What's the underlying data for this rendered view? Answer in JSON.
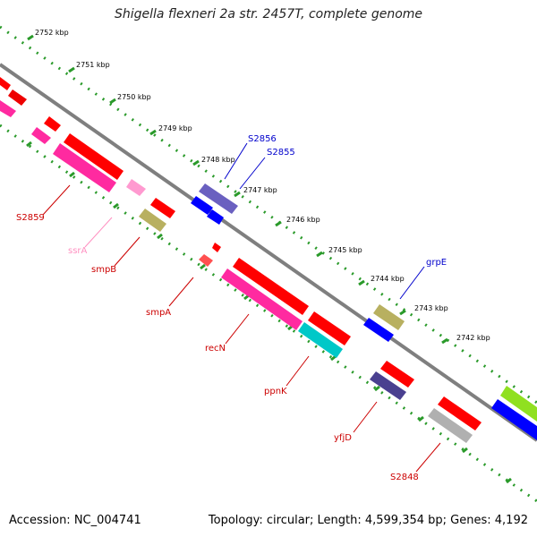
{
  "title": "Shigella flexneri 2a str. 2457T, complete genome",
  "footer": {
    "accession": "Accession: NC_004741",
    "stats": "Topology: circular; Length: 4,599,354 bp; Genes: 4,192"
  },
  "colors": {
    "backbone": "#7f7f7f",
    "ruler_dots": "#2a9a2a",
    "red": "#ff0000",
    "pink": "#ff2aa0",
    "light_pink": "#ff9ad0",
    "khaki": "#b8b060",
    "blue": "#0000ff",
    "slate": "#5a50a0",
    "cyan": "#00c8c8",
    "gray": "#b0b0b0",
    "lime": "#90e020",
    "label_red": "#cc0000",
    "label_blue": "#0000cc",
    "label_pink": "#ff8fc0"
  },
  "ruler": {
    "labels": [
      "2752 kbp",
      "2751 kbp",
      "2750 kbp",
      "2749 kbp",
      "2748 kbp",
      "2747 kbp",
      "2746 kbp",
      "2745 kbp",
      "2744 kbp",
      "2743 kbp",
      "2742 kbp"
    ]
  },
  "features": {
    "S2859": "S2859",
    "ssrA": "ssrA",
    "smpB": "smpB",
    "smpA": "smpA",
    "recN": "recN",
    "ppnK": "ppnK",
    "yfjD": "yfjD",
    "S2848": "S2848",
    "S2856": "S2856",
    "S2855": "S2855",
    "grpE": "grpE"
  }
}
